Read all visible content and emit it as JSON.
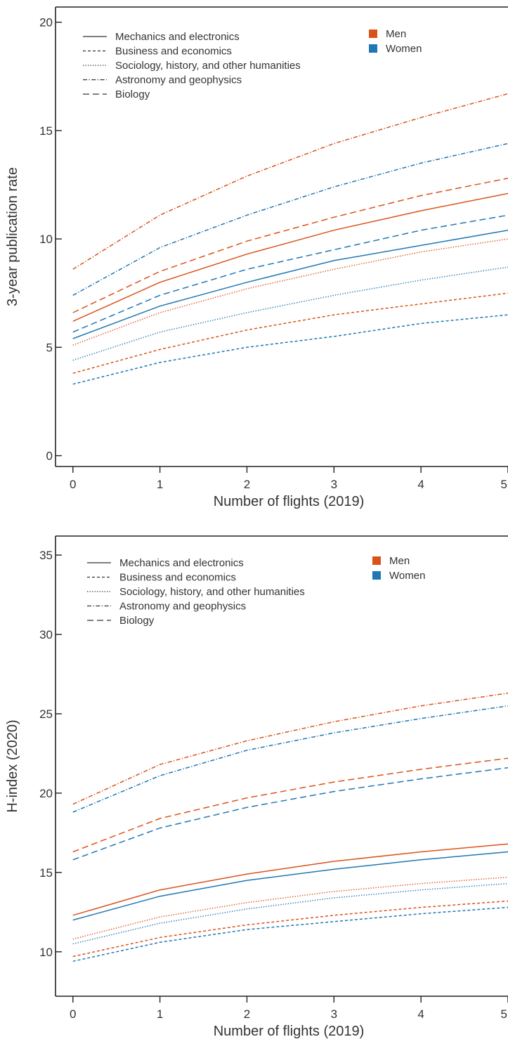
{
  "chart_data": [
    {
      "type": "line",
      "title": "",
      "xlabel": "Number of flights (2019)",
      "ylabel": "3-year publication rate",
      "x": [
        0,
        1,
        2,
        3,
        4,
        5
      ],
      "xlim": [
        -0.2,
        5
      ],
      "ylim": [
        -0.5,
        20.7
      ],
      "yticks": [
        0,
        5,
        10,
        15,
        20
      ],
      "xticks": [
        0,
        1,
        2,
        3,
        4,
        5
      ],
      "grid": false,
      "legend_styles": [
        {
          "label": "Mechanics and electronics",
          "style": "solid"
        },
        {
          "label": "Business and economics",
          "style": "dashed-short"
        },
        {
          "label": "Sociology, history, and other humanities",
          "style": "dotted"
        },
        {
          "label": "Astronomy and geophysics",
          "style": "dashdot"
        },
        {
          "label": "Biology",
          "style": "dashed-long"
        }
      ],
      "legend_colors": [
        {
          "label": "Men",
          "color": "#d95319"
        },
        {
          "label": "Women",
          "color": "#1f77b4"
        }
      ],
      "series": [
        {
          "field": "Astronomy and geophysics",
          "gender": "Men",
          "style": "dashdot",
          "color": "#d95319",
          "values": [
            8.6,
            11.1,
            12.9,
            14.4,
            15.6,
            16.7
          ]
        },
        {
          "field": "Astronomy and geophysics",
          "gender": "Women",
          "style": "dashdot",
          "color": "#1f77b4",
          "values": [
            7.4,
            9.6,
            11.1,
            12.4,
            13.5,
            14.4
          ]
        },
        {
          "field": "Biology",
          "gender": "Men",
          "style": "dashed-long",
          "color": "#d95319",
          "values": [
            6.6,
            8.5,
            9.9,
            11.0,
            12.0,
            12.8
          ]
        },
        {
          "field": "Biology",
          "gender": "Women",
          "style": "dashed-long",
          "color": "#1f77b4",
          "values": [
            5.7,
            7.4,
            8.6,
            9.5,
            10.4,
            11.1
          ]
        },
        {
          "field": "Mechanics and electronics",
          "gender": "Men",
          "style": "solid",
          "color": "#d95319",
          "values": [
            6.2,
            8.0,
            9.3,
            10.4,
            11.3,
            12.1
          ]
        },
        {
          "field": "Mechanics and electronics",
          "gender": "Women",
          "style": "solid",
          "color": "#1f77b4",
          "values": [
            5.4,
            6.9,
            8.0,
            9.0,
            9.7,
            10.4
          ]
        },
        {
          "field": "Sociology, history, and other humanities",
          "gender": "Men",
          "style": "dotted",
          "color": "#d95319",
          "values": [
            5.1,
            6.6,
            7.7,
            8.6,
            9.4,
            10.0
          ]
        },
        {
          "field": "Sociology, history, and other humanities",
          "gender": "Women",
          "style": "dotted",
          "color": "#1f77b4",
          "values": [
            4.4,
            5.7,
            6.6,
            7.4,
            8.1,
            8.7
          ]
        },
        {
          "field": "Business and economics",
          "gender": "Men",
          "style": "dashed-short",
          "color": "#d95319",
          "values": [
            3.8,
            4.9,
            5.8,
            6.5,
            7.0,
            7.5
          ]
        },
        {
          "field": "Business and economics",
          "gender": "Women",
          "style": "dashed-short",
          "color": "#1f77b4",
          "values": [
            3.3,
            4.3,
            5.0,
            5.5,
            6.1,
            6.5
          ]
        }
      ]
    },
    {
      "type": "line",
      "title": "",
      "xlabel": "Number of flights (2019)",
      "ylabel": "H-index (2020)",
      "x": [
        0,
        1,
        2,
        3,
        4,
        5
      ],
      "xlim": [
        -0.2,
        5
      ],
      "ylim": [
        7.2,
        36.2
      ],
      "yticks": [
        10,
        15,
        20,
        25,
        30,
        35
      ],
      "xticks": [
        0,
        1,
        2,
        3,
        4,
        5
      ],
      "grid": false,
      "legend_styles": [
        {
          "label": "Mechanics and electronics",
          "style": "solid"
        },
        {
          "label": "Business and economics",
          "style": "dashed-short"
        },
        {
          "label": "Sociology, history, and other humanities",
          "style": "dotted"
        },
        {
          "label": "Astronomy and geophysics",
          "style": "dashdot"
        },
        {
          "label": "Biology",
          "style": "dashed-long"
        }
      ],
      "legend_colors": [
        {
          "label": "Men",
          "color": "#d95319"
        },
        {
          "label": "Women",
          "color": "#1f77b4"
        }
      ],
      "series": [
        {
          "field": "Astronomy and geophysics",
          "gender": "Men",
          "style": "dashdot",
          "color": "#d95319",
          "values": [
            19.3,
            21.8,
            23.3,
            24.5,
            25.5,
            26.3
          ]
        },
        {
          "field": "Astronomy and geophysics",
          "gender": "Women",
          "style": "dashdot",
          "color": "#1f77b4",
          "values": [
            18.8,
            21.1,
            22.7,
            23.8,
            24.7,
            25.5
          ]
        },
        {
          "field": "Biology",
          "gender": "Men",
          "style": "dashed-long",
          "color": "#d95319",
          "values": [
            16.3,
            18.4,
            19.7,
            20.7,
            21.5,
            22.2
          ]
        },
        {
          "field": "Biology",
          "gender": "Women",
          "style": "dashed-long",
          "color": "#1f77b4",
          "values": [
            15.8,
            17.8,
            19.1,
            20.1,
            20.9,
            21.6
          ]
        },
        {
          "field": "Mechanics and electronics",
          "gender": "Men",
          "style": "solid",
          "color": "#d95319",
          "values": [
            12.3,
            13.9,
            14.9,
            15.7,
            16.3,
            16.8
          ]
        },
        {
          "field": "Mechanics and electronics",
          "gender": "Women",
          "style": "solid",
          "color": "#1f77b4",
          "values": [
            12.0,
            13.5,
            14.5,
            15.2,
            15.8,
            16.3
          ]
        },
        {
          "field": "Sociology, history, and other humanities",
          "gender": "Men",
          "style": "dotted",
          "color": "#d95319",
          "values": [
            10.8,
            12.2,
            13.1,
            13.8,
            14.3,
            14.7
          ]
        },
        {
          "field": "Sociology, history, and other humanities",
          "gender": "Women",
          "style": "dotted",
          "color": "#1f77b4",
          "values": [
            10.5,
            11.8,
            12.7,
            13.4,
            13.9,
            14.3
          ]
        },
        {
          "field": "Business and economics",
          "gender": "Men",
          "style": "dashed-short",
          "color": "#d95319",
          "values": [
            9.7,
            10.9,
            11.7,
            12.3,
            12.8,
            13.2
          ]
        },
        {
          "field": "Business and economics",
          "gender": "Women",
          "style": "dashed-short",
          "color": "#1f77b4",
          "values": [
            9.4,
            10.6,
            11.4,
            11.9,
            12.4,
            12.8
          ]
        }
      ]
    }
  ]
}
